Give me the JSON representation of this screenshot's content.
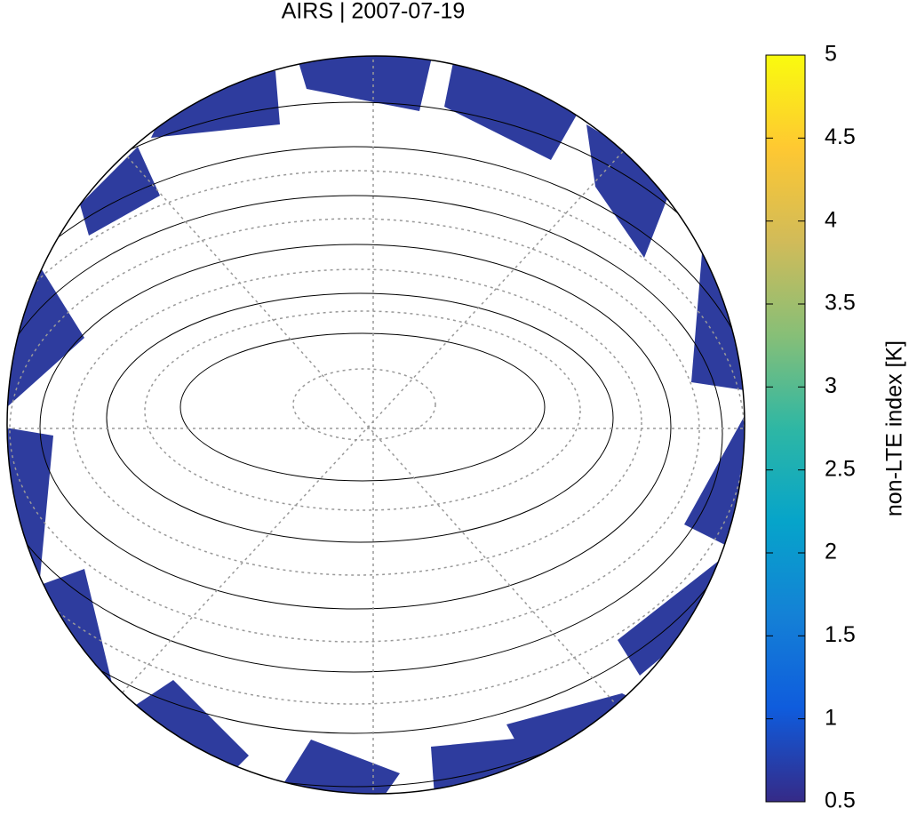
{
  "title": "AIRS | 2007-07-19",
  "colorbar": {
    "label": "non-LTE index [K]",
    "lim": [
      0.5,
      5
    ],
    "ticks": [
      0.5,
      1,
      1.5,
      2,
      2.5,
      3,
      3.5,
      4,
      4.5,
      5
    ],
    "colors": [
      "#352a87",
      "#0f5cdd",
      "#1481d6",
      "#06a4ca",
      "#2eb7a4",
      "#87bf77",
      "#d1bb59",
      "#fec832",
      "#f9fb0e"
    ]
  }
}
